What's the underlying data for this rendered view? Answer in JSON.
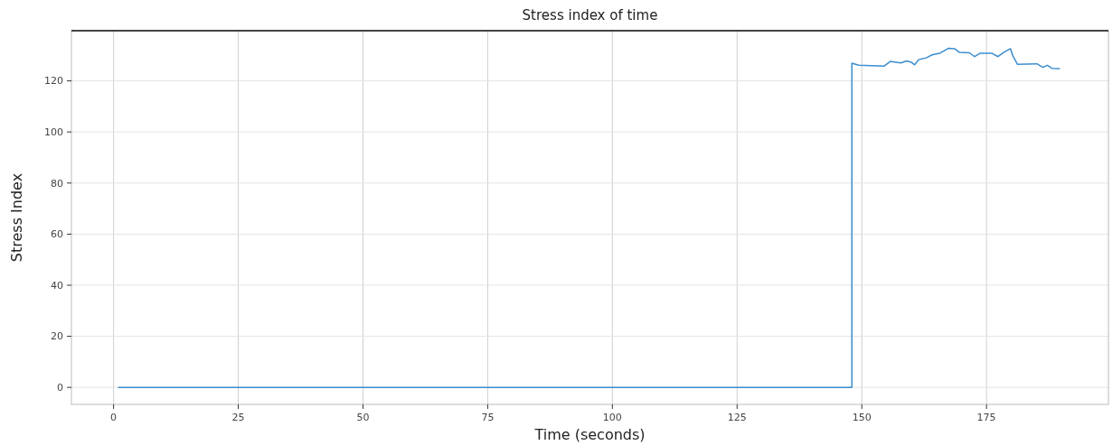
{
  "chart_data": {
    "type": "line",
    "title": "Stress index of time",
    "xlabel": "Time (seconds)",
    "ylabel": "Stress Index",
    "xlim": [
      -8.45,
      199.45
    ],
    "xticks": [
      0,
      25,
      50,
      75,
      100,
      125,
      150,
      175
    ],
    "ylim": [
      -6.65,
      139.65
    ],
    "yticks": [
      0,
      20,
      40,
      60,
      80,
      100,
      120
    ],
    "grid": true,
    "marker": "none",
    "line_style": "solid",
    "series": [
      {
        "color": "#3b8ed0",
        "x": [
          1,
          148,
          148,
          149.4,
          154.5,
          155.7,
          157.8,
          159,
          159.9,
          160.6,
          161.4,
          162.9,
          164.1,
          165.6,
          167.4,
          168.6,
          169.5,
          171.6,
          172.6,
          173.7,
          176.1,
          177.3,
          178.5,
          179.8,
          180.3,
          181.2,
          185.1,
          186.3,
          187.2,
          188.1,
          189.6
        ],
        "values": [
          0,
          0,
          126.9,
          126.1,
          125.8,
          127.6,
          127,
          127.8,
          127.3,
          126.3,
          128.3,
          129,
          130.2,
          130.8,
          132.8,
          132.6,
          131.2,
          131,
          129.5,
          130.8,
          130.8,
          129.5,
          131.2,
          132.6,
          129.7,
          126.5,
          126.7,
          125.3,
          126.1,
          124.9,
          124.8
        ]
      }
    ]
  }
}
